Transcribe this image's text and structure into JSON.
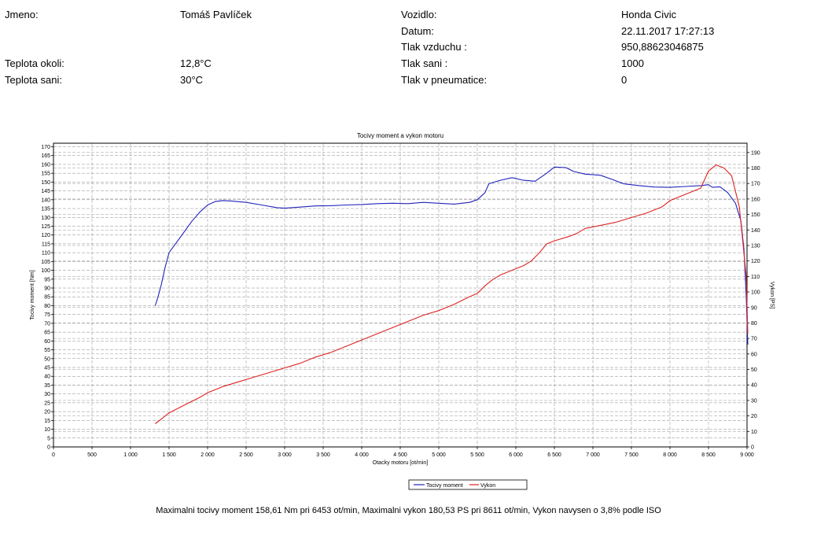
{
  "header": {
    "jmeno_label": "Jmeno:",
    "jmeno_value": "Tomáš Pavlíček",
    "vozidlo_label": "Vozidlo:",
    "vozidlo_value": "Honda Civic",
    "datum_label": "Datum:",
    "datum_value": "22.11.2017 17:27:13",
    "tlak_vzduchu_label": "Tlak vzduchu :",
    "tlak_vzduchu_value": "950,88623046875",
    "teplota_okoli_label": "Teplota okoli:",
    "teplota_okoli_value": "12,8°C",
    "tlak_sani_label": "Tlak sani :",
    "tlak_sani_value": "1000",
    "teplota_sani_label": "Teplota sani:",
    "teplota_sani_value": "30°C",
    "tlak_pneumatice_label": "Tlak v pneumatice:",
    "tlak_pneumatice_value": "0"
  },
  "footer": {
    "summary": "Maximalni tocivy moment 158,61 Nm pri 6453 ot/min,  Maximalni vykon 180,53 PS pri 8611 ot/min,  Vykon navysen o 3,8% podle ISO"
  },
  "chart_data": {
    "type": "line",
    "title": "Tocivy moment a vykon motoru",
    "xlabel": "Otacky motoru [ot/min]",
    "ylabel": "Tocivy moment [Nm]",
    "y2label": "Vykon [PS]",
    "xlim": [
      0,
      9000
    ],
    "ylim": [
      0,
      172
    ],
    "y2lim": [
      0,
      196
    ],
    "x_ticks": [
      0,
      500,
      1000,
      1500,
      2000,
      2500,
      3000,
      3500,
      4000,
      4500,
      5000,
      5500,
      6000,
      6500,
      7000,
      7500,
      8000,
      8500,
      9000
    ],
    "x_tick_labels": [
      "0",
      "500",
      "1 000",
      "1 500",
      "2 000",
      "2 500",
      "3 000",
      "3 500",
      "4 000",
      "4 500",
      "5 000",
      "5 500",
      "6 000",
      "6 500",
      "7 000",
      "7 500",
      "8 000",
      "8 500",
      "9 000"
    ],
    "y_ticks": [
      0,
      5,
      10,
      15,
      20,
      25,
      30,
      35,
      40,
      45,
      50,
      55,
      60,
      65,
      70,
      75,
      80,
      85,
      90,
      95,
      100,
      105,
      110,
      115,
      120,
      125,
      130,
      135,
      140,
      145,
      150,
      155,
      160,
      165,
      170
    ],
    "y2_ticks": [
      0,
      10,
      20,
      30,
      40,
      50,
      60,
      70,
      80,
      90,
      100,
      110,
      120,
      130,
      140,
      150,
      160,
      170,
      180,
      190
    ],
    "grid": true,
    "legend_position": "bottom-center",
    "series": [
      {
        "name": "Tocivy moment",
        "axis": "left",
        "color": "#2222bb",
        "points": [
          [
            1320,
            80
          ],
          [
            1350,
            84
          ],
          [
            1400,
            92
          ],
          [
            1450,
            102
          ],
          [
            1500,
            110
          ],
          [
            1600,
            116
          ],
          [
            1700,
            122
          ],
          [
            1800,
            128
          ],
          [
            1900,
            133
          ],
          [
            2000,
            137
          ],
          [
            2100,
            139
          ],
          [
            2200,
            139.5
          ],
          [
            2300,
            139.3
          ],
          [
            2500,
            138.5
          ],
          [
            2700,
            137
          ],
          [
            2900,
            135.5
          ],
          [
            3000,
            135.2
          ],
          [
            3200,
            135.8
          ],
          [
            3400,
            136.5
          ],
          [
            3600,
            136.6
          ],
          [
            3800,
            137
          ],
          [
            4000,
            137.3
          ],
          [
            4200,
            137.8
          ],
          [
            4400,
            138
          ],
          [
            4600,
            137.8
          ],
          [
            4800,
            138.5
          ],
          [
            5000,
            138
          ],
          [
            5200,
            137.5
          ],
          [
            5400,
            138.5
          ],
          [
            5500,
            140
          ],
          [
            5600,
            144
          ],
          [
            5650,
            149
          ],
          [
            5800,
            151
          ],
          [
            5950,
            152.5
          ],
          [
            6100,
            151
          ],
          [
            6250,
            150.5
          ],
          [
            6400,
            155
          ],
          [
            6500,
            158.5
          ],
          [
            6650,
            158.2
          ],
          [
            6750,
            156
          ],
          [
            6900,
            154.5
          ],
          [
            7100,
            153.8
          ],
          [
            7250,
            151.5
          ],
          [
            7400,
            149
          ],
          [
            7600,
            148
          ],
          [
            7800,
            147.2
          ],
          [
            8000,
            147
          ],
          [
            8200,
            147.5
          ],
          [
            8400,
            148
          ],
          [
            8500,
            148.5
          ],
          [
            8550,
            147
          ],
          [
            8650,
            147.3
          ],
          [
            8750,
            144
          ],
          [
            8850,
            138
          ],
          [
            8920,
            128
          ],
          [
            8960,
            112
          ],
          [
            8990,
            85
          ],
          [
            9010,
            58
          ]
        ]
      },
      {
        "name": "Vykon",
        "axis": "right",
        "color": "#dd2222",
        "points": [
          [
            1320,
            15
          ],
          [
            1400,
            18
          ],
          [
            1500,
            22
          ],
          [
            1700,
            27
          ],
          [
            1900,
            32
          ],
          [
            2000,
            35
          ],
          [
            2200,
            39
          ],
          [
            2400,
            42
          ],
          [
            2600,
            45
          ],
          [
            2800,
            48
          ],
          [
            3000,
            51
          ],
          [
            3200,
            54
          ],
          [
            3400,
            58
          ],
          [
            3600,
            61
          ],
          [
            3800,
            65
          ],
          [
            4000,
            69
          ],
          [
            4200,
            73
          ],
          [
            4400,
            77
          ],
          [
            4600,
            81
          ],
          [
            4800,
            85
          ],
          [
            5000,
            88
          ],
          [
            5200,
            92
          ],
          [
            5400,
            97
          ],
          [
            5500,
            99
          ],
          [
            5600,
            104
          ],
          [
            5700,
            108
          ],
          [
            5800,
            111
          ],
          [
            5900,
            113
          ],
          [
            6000,
            115
          ],
          [
            6100,
            117
          ],
          [
            6200,
            120
          ],
          [
            6300,
            125
          ],
          [
            6400,
            131
          ],
          [
            6500,
            133
          ],
          [
            6700,
            136
          ],
          [
            6800,
            138
          ],
          [
            6900,
            141
          ],
          [
            7100,
            143
          ],
          [
            7300,
            145
          ],
          [
            7500,
            148
          ],
          [
            7700,
            151
          ],
          [
            7900,
            155
          ],
          [
            8000,
            159
          ],
          [
            8200,
            163
          ],
          [
            8400,
            167
          ],
          [
            8500,
            178
          ],
          [
            8600,
            182
          ],
          [
            8700,
            180
          ],
          [
            8800,
            175
          ],
          [
            8850,
            165
          ],
          [
            8900,
            155
          ],
          [
            8950,
            130
          ],
          [
            8990,
            110
          ],
          [
            9010,
            73
          ]
        ]
      }
    ]
  }
}
